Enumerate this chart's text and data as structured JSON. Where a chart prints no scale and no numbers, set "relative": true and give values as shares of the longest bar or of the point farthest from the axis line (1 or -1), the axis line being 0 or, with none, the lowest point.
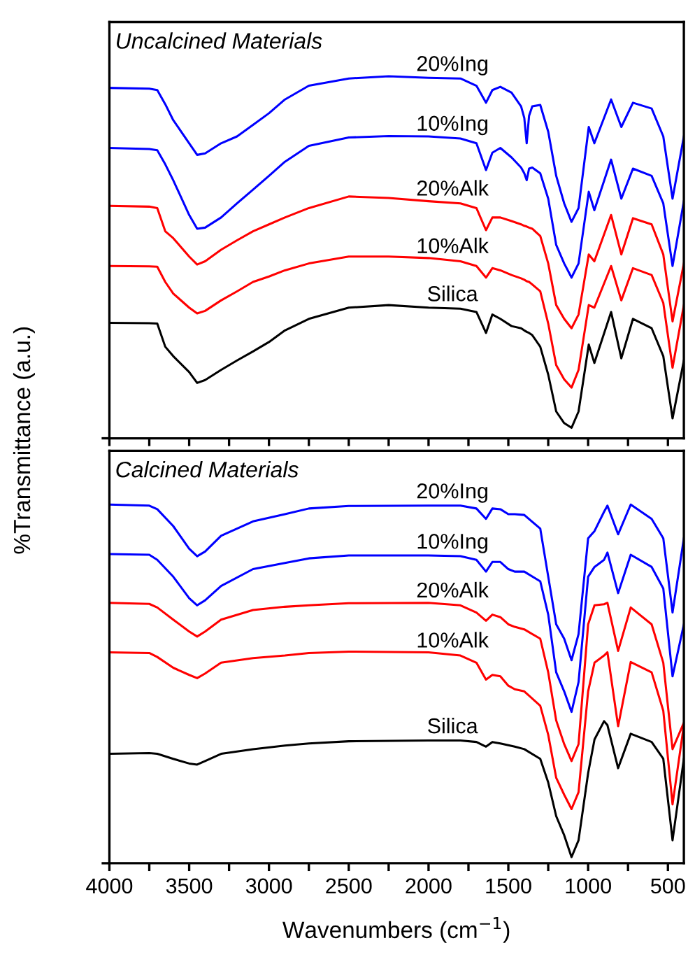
{
  "chart_data": [
    {
      "type": "line",
      "title": "Uncalcined Materials",
      "ylabel": "%Transmittance (a.u.)",
      "relative": true,
      "tick_labels": false,
      "legend": false,
      "grid": false,
      "xlim": [
        4000,
        400
      ],
      "xticks": [
        4000,
        {
          "value": 3750,
          "label": null
        },
        3500,
        {
          "value": 3250,
          "label": null
        },
        3000,
        {
          "value": 2750,
          "label": null
        },
        2500,
        {
          "value": 2250,
          "label": null
        },
        2000,
        {
          "value": 1750,
          "label": null
        },
        1500,
        {
          "value": 1250,
          "label": null
        },
        1000,
        {
          "value": 750,
          "label": null
        },
        500
      ],
      "x": [
        4000,
        3750,
        3700,
        3650,
        3600,
        3500,
        3450,
        3400,
        3300,
        3200,
        3100,
        3000,
        2900,
        2750,
        2500,
        2250,
        2000,
        1800,
        1700,
        1640,
        1600,
        1550,
        1480,
        1420,
        1400,
        1385,
        1370,
        1350,
        1300,
        1250,
        1200,
        1150,
        1104,
        1060,
        996,
        961,
        856,
        792,
        719,
        602,
        529,
        471,
        400
      ],
      "series": [
        {
          "name": "20%Ing",
          "color": "#0000ff",
          "values": [
            0.968,
            0.966,
            0.962,
            0.923,
            0.879,
            0.815,
            0.783,
            0.787,
            0.815,
            0.834,
            0.866,
            0.898,
            0.936,
            0.974,
            0.994,
            1.0,
            0.996,
            0.994,
            0.974,
            0.927,
            0.962,
            0.971,
            0.955,
            0.917,
            0.885,
            0.815,
            0.891,
            0.917,
            0.921,
            0.847,
            0.725,
            0.649,
            0.598,
            0.636,
            0.86,
            0.815,
            0.936,
            0.86,
            0.927,
            0.911,
            0.834,
            0.662,
            0.834
          ]
        },
        {
          "name": "10%Ing",
          "color": "#0000ff",
          "values": [
            0.802,
            0.799,
            0.796,
            0.757,
            0.713,
            0.617,
            0.579,
            0.582,
            0.61,
            0.649,
            0.687,
            0.725,
            0.764,
            0.808,
            0.831,
            0.835,
            0.834,
            0.828,
            0.815,
            0.741,
            0.789,
            0.802,
            0.776,
            0.748,
            0.732,
            0.713,
            0.745,
            0.748,
            0.732,
            0.662,
            0.534,
            0.483,
            0.444,
            0.483,
            0.681,
            0.63,
            0.77,
            0.662,
            0.745,
            0.725,
            0.649,
            0.476,
            0.655
          ]
        },
        {
          "name": "20%Alk",
          "color": "#ff0000",
          "values": [
            0.642,
            0.64,
            0.636,
            0.572,
            0.553,
            0.502,
            0.48,
            0.489,
            0.521,
            0.547,
            0.572,
            0.591,
            0.61,
            0.636,
            0.668,
            0.664,
            0.655,
            0.649,
            0.636,
            0.575,
            0.61,
            0.61,
            0.6,
            0.591,
            0.587,
            0.585,
            0.582,
            0.579,
            0.559,
            0.483,
            0.368,
            0.33,
            0.304,
            0.342,
            0.508,
            0.489,
            0.617,
            0.508,
            0.608,
            0.591,
            0.508,
            0.323,
            0.483
          ]
        },
        {
          "name": "10%Alk",
          "color": "#ff0000",
          "values": [
            0.476,
            0.475,
            0.474,
            0.432,
            0.4,
            0.361,
            0.345,
            0.352,
            0.381,
            0.406,
            0.432,
            0.447,
            0.464,
            0.483,
            0.502,
            0.502,
            0.498,
            0.489,
            0.476,
            0.444,
            0.47,
            0.464,
            0.451,
            0.442,
            0.438,
            0.434,
            0.432,
            0.425,
            0.406,
            0.317,
            0.202,
            0.163,
            0.14,
            0.189,
            0.368,
            0.361,
            0.476,
            0.381,
            0.47,
            0.451,
            0.374,
            0.195,
            0.368
          ]
        },
        {
          "name": "Silica",
          "color": "#000000",
          "values": [
            0.319,
            0.318,
            0.317,
            0.253,
            0.227,
            0.183,
            0.153,
            0.161,
            0.189,
            0.215,
            0.24,
            0.266,
            0.298,
            0.33,
            0.361,
            0.368,
            0.361,
            0.358,
            0.349,
            0.291,
            0.342,
            0.33,
            0.31,
            0.304,
            0.298,
            0.294,
            0.291,
            0.285,
            0.253,
            0.176,
            0.074,
            0.042,
            0.029,
            0.074,
            0.259,
            0.208,
            0.349,
            0.221,
            0.33,
            0.304,
            0.227,
            0.055,
            0.215
          ]
        }
      ]
    },
    {
      "type": "line",
      "title": "Calcined Materials",
      "xlabel": "Wavenumbers (cm$^{−1}$)",
      "relative": true,
      "tick_labels": "x",
      "legend": false,
      "grid": false,
      "xlim": [
        4000,
        400
      ],
      "xticks": [
        4000,
        {
          "value": 3750,
          "label": null
        },
        3500,
        {
          "value": 3250,
          "label": null
        },
        3000,
        {
          "value": 2750,
          "label": null
        },
        2500,
        {
          "value": 2250,
          "label": null
        },
        2000,
        {
          "value": 1750,
          "label": null
        },
        1500,
        {
          "value": 1250,
          "label": null
        },
        1000,
        {
          "value": 750,
          "label": null
        },
        500
      ],
      "x": [
        4000,
        3750,
        3700,
        3600,
        3500,
        3450,
        3400,
        3300,
        3100,
        2900,
        2750,
        2500,
        2000,
        1800,
        1700,
        1640,
        1600,
        1550,
        1500,
        1460,
        1400,
        1300,
        1250,
        1200,
        1150,
        1104,
        1060,
        1000,
        960,
        900,
        879,
        812,
        733,
        602,
        529,
        471,
        400
      ],
      "series": [
        {
          "name": "20%Ing",
          "color": "#0000ff",
          "values": [
            1.0,
            0.997,
            0.987,
            0.94,
            0.877,
            0.856,
            0.869,
            0.913,
            0.953,
            0.973,
            0.989,
            0.996,
            0.997,
            0.997,
            0.989,
            0.96,
            0.989,
            0.987,
            0.973,
            0.973,
            0.971,
            0.933,
            0.799,
            0.666,
            0.626,
            0.566,
            0.639,
            0.906,
            0.926,
            0.98,
            0.997,
            0.917,
            1.0,
            0.96,
            0.906,
            0.699,
            0.906
          ]
        },
        {
          "name": "10%Ing",
          "color": "#0000ff",
          "values": [
            0.862,
            0.86,
            0.846,
            0.799,
            0.739,
            0.719,
            0.733,
            0.773,
            0.82,
            0.837,
            0.85,
            0.858,
            0.858,
            0.856,
            0.846,
            0.813,
            0.84,
            0.84,
            0.82,
            0.813,
            0.813,
            0.786,
            0.693,
            0.532,
            0.479,
            0.422,
            0.505,
            0.799,
            0.826,
            0.846,
            0.866,
            0.753,
            0.86,
            0.826,
            0.766,
            0.521,
            0.666
          ]
        },
        {
          "name": "20%Alk",
          "color": "#ff0000",
          "values": [
            0.726,
            0.723,
            0.713,
            0.679,
            0.646,
            0.632,
            0.646,
            0.679,
            0.706,
            0.715,
            0.719,
            0.725,
            0.726,
            0.719,
            0.699,
            0.676,
            0.693,
            0.686,
            0.666,
            0.659,
            0.652,
            0.626,
            0.532,
            0.398,
            0.332,
            0.285,
            0.332,
            0.666,
            0.719,
            0.722,
            0.726,
            0.592,
            0.713,
            0.666,
            0.559,
            0.318,
            0.392
          ]
        },
        {
          "name": "10%Alk",
          "color": "#ff0000",
          "values": [
            0.588,
            0.586,
            0.575,
            0.545,
            0.525,
            0.516,
            0.529,
            0.559,
            0.572,
            0.579,
            0.586,
            0.59,
            0.588,
            0.579,
            0.559,
            0.512,
            0.525,
            0.521,
            0.495,
            0.485,
            0.479,
            0.439,
            0.358,
            0.238,
            0.191,
            0.151,
            0.198,
            0.479,
            0.559,
            0.579,
            0.588,
            0.382,
            0.561,
            0.532,
            0.425,
            0.164,
            0.385
          ]
        },
        {
          "name": "Silica",
          "color": "#000000",
          "values": [
            0.305,
            0.307,
            0.305,
            0.291,
            0.278,
            0.275,
            0.285,
            0.305,
            0.318,
            0.328,
            0.334,
            0.34,
            0.342,
            0.342,
            0.338,
            0.325,
            0.338,
            0.334,
            0.329,
            0.325,
            0.318,
            0.291,
            0.225,
            0.131,
            0.078,
            0.017,
            0.064,
            0.251,
            0.345,
            0.396,
            0.385,
            0.265,
            0.361,
            0.338,
            0.291,
            0.064,
            0.291
          ]
        }
      ]
    }
  ]
}
